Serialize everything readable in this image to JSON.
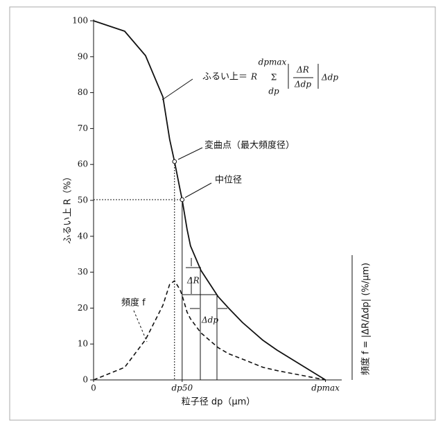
{
  "chart_data": {
    "type": "line",
    "y_label": "ふるい上 R（%）",
    "x_label": "粒子径 dp（μm）",
    "y2_label": "頻度 f = |ΔR/Δdp| (%/μm)",
    "x": [
      0,
      0.134,
      0.224,
      0.299,
      0.328,
      0.349,
      0.373,
      0.382,
      0.403,
      0.418,
      0.463,
      0.537,
      0.582,
      0.642,
      0.731,
      0.791,
      1
    ],
    "series": [
      {
        "color": "#111111",
        "style": "solid",
        "values": [
          100,
          97.1,
          90.3,
          78.8,
          67,
          60.8,
          53,
          50.2,
          42,
          37.3,
          30.5,
          23.2,
          20,
          16,
          11,
          8.3,
          0
        ]
      },
      {
        "color": "#111111",
        "style": "dashed",
        "values": [
          0,
          3.5,
          11.2,
          20.8,
          26.6,
          27.6,
          25.1,
          23.5,
          18.9,
          17,
          13.1,
          9,
          7.3,
          5.8,
          3.5,
          2.6,
          0
        ]
      }
    ],
    "markers": [
      {
        "x": 0.349,
        "y": 60.8
      },
      {
        "x": 0.382,
        "y": 50.2
      }
    ],
    "xlim": [
      0,
      1.07
    ],
    "xticks": [
      {
        "value": 0,
        "label": "0"
      },
      {
        "value": 0.382,
        "label": "dp50"
      },
      {
        "value": 1,
        "label": "dpmax"
      }
    ],
    "ylim": [
      0,
      100
    ],
    "yticks": [
      0,
      10,
      20,
      30,
      40,
      50,
      60,
      70,
      80,
      90,
      100
    ],
    "annotations": {
      "cumulative": {
        "label": "ふるい上＝",
        "symbol": "R",
        "sigma": "Σ",
        "upper": "dpmax",
        "lower": "dp",
        "numerator": "ΔR",
        "denominator": "Δdp",
        "factor": "Δdp"
      },
      "inflection": "変曲点（最大頻度径）",
      "median": "中位径",
      "frequency": "頻度 f",
      "delta_r": "ΔR",
      "delta_dp": "Δdp"
    }
  }
}
